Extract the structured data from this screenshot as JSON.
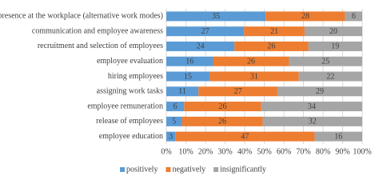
{
  "chart_data": {
    "type": "stacked-percent-bar",
    "categories": [
      "presence at the workplace (alternative work modes)",
      "communication and employee awareness",
      "recruitment and selection of employees",
      "employee evaluation",
      "hiring employees",
      "assigning work tasks",
      "employee remuneration",
      "release of employees",
      "employee education"
    ],
    "series": [
      {
        "name": "positively",
        "color": "#5b9bd5",
        "values": [
          35,
          27,
          24,
          16,
          15,
          11,
          6,
          5,
          3
        ]
      },
      {
        "name": "negatively",
        "color": "#ed7d31",
        "values": [
          28,
          21,
          26,
          26,
          31,
          27,
          26,
          26,
          47
        ]
      },
      {
        "name": "insignificantly",
        "color": "#a5a5a5",
        "values": [
          6,
          20,
          19,
          25,
          22,
          29,
          34,
          32,
          16
        ]
      }
    ],
    "xlim": [
      0,
      100
    ],
    "xticks": [
      {
        "value": 0,
        "label": "0%"
      },
      {
        "value": 10,
        "label": "10%"
      },
      {
        "value": 20,
        "label": "20%"
      },
      {
        "value": 30,
        "label": "30%"
      },
      {
        "value": 40,
        "label": "40%"
      },
      {
        "value": 50,
        "label": "50%"
      },
      {
        "value": 60,
        "label": "60%"
      },
      {
        "value": 70,
        "label": "70%"
      },
      {
        "value": 80,
        "label": "80%"
      },
      {
        "value": 90,
        "label": "90%"
      },
      {
        "value": 100,
        "label": "100%"
      }
    ],
    "grid": true,
    "legend": "bottom"
  }
}
